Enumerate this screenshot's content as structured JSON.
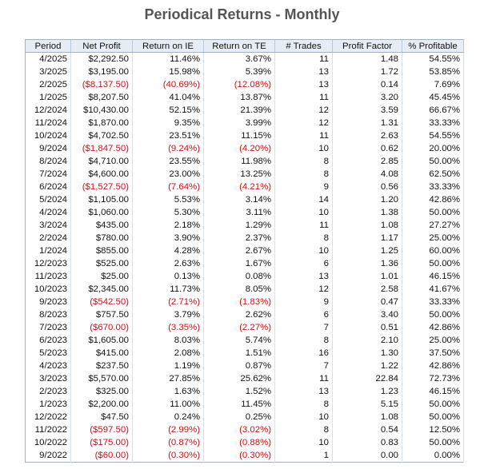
{
  "title": "Periodical Returns - Monthly",
  "colors": {
    "negative": "#cc1111",
    "header_bg": "#e7edf6",
    "border": "#9fb3cf",
    "title": "#555555"
  },
  "columns": [
    "Period",
    "Net Profit",
    "Return on IE",
    "Return on TE",
    "# Trades",
    "Profit Factor",
    "% Profitable"
  ],
  "rows": [
    [
      "4/2025",
      "$2,292.50",
      "11.46%",
      "3.67%",
      "11",
      "1.48",
      "54.55%"
    ],
    [
      "3/2025",
      "$3,195.00",
      "15.98%",
      "5.39%",
      "13",
      "1.72",
      "53.85%"
    ],
    [
      "2/2025",
      "($8,137.50)",
      "(40.69%)",
      "(12.08%)",
      "13",
      "0.14",
      "7.69%"
    ],
    [
      "1/2025",
      "$8,207.50",
      "41.04%",
      "13.87%",
      "11",
      "3.20",
      "45.45%"
    ],
    [
      "12/2024",
      "$10,430.00",
      "52.15%",
      "21.39%",
      "12",
      "3.59",
      "66.67%"
    ],
    [
      "11/2024",
      "$1,870.00",
      "9.35%",
      "3.99%",
      "12",
      "1.31",
      "33.33%"
    ],
    [
      "10/2024",
      "$4,702.50",
      "23.51%",
      "11.15%",
      "11",
      "2.63",
      "54.55%"
    ],
    [
      "9/2024",
      "($1,847.50)",
      "(9.24%)",
      "(4.20%)",
      "10",
      "0.62",
      "20.00%"
    ],
    [
      "8/2024",
      "$4,710.00",
      "23.55%",
      "11.98%",
      "8",
      "2.85",
      "50.00%"
    ],
    [
      "7/2024",
      "$4,600.00",
      "23.00%",
      "13.25%",
      "8",
      "4.08",
      "62.50%"
    ],
    [
      "6/2024",
      "($1,527.50)",
      "(7.64%)",
      "(4.21%)",
      "9",
      "0.56",
      "33.33%"
    ],
    [
      "5/2024",
      "$1,105.00",
      "5.53%",
      "3.14%",
      "14",
      "1.20",
      "42.86%"
    ],
    [
      "4/2024",
      "$1,060.00",
      "5.30%",
      "3.11%",
      "10",
      "1.38",
      "50.00%"
    ],
    [
      "3/2024",
      "$435.00",
      "2.18%",
      "1.29%",
      "11",
      "1.08",
      "27.27%"
    ],
    [
      "2/2024",
      "$780.00",
      "3.90%",
      "2.37%",
      "8",
      "1.17",
      "25.00%"
    ],
    [
      "1/2024",
      "$855.00",
      "4.28%",
      "2.67%",
      "10",
      "1.25",
      "60.00%"
    ],
    [
      "12/2023",
      "$525.00",
      "2.63%",
      "1.67%",
      "6",
      "1.36",
      "50.00%"
    ],
    [
      "11/2023",
      "$25.00",
      "0.13%",
      "0.08%",
      "13",
      "1.01",
      "46.15%"
    ],
    [
      "10/2023",
      "$2,345.00",
      "11.73%",
      "8.05%",
      "12",
      "2.58",
      "41.67%"
    ],
    [
      "9/2023",
      "($542.50)",
      "(2.71%)",
      "(1.83%)",
      "9",
      "0.47",
      "33.33%"
    ],
    [
      "8/2023",
      "$757.50",
      "3.79%",
      "2.62%",
      "6",
      "3.40",
      "50.00%"
    ],
    [
      "7/2023",
      "($670.00)",
      "(3.35%)",
      "(2.27%)",
      "7",
      "0.51",
      "42.86%"
    ],
    [
      "6/2023",
      "$1,605.00",
      "8.03%",
      "5.74%",
      "8",
      "2.10",
      "25.00%"
    ],
    [
      "5/2023",
      "$415.00",
      "2.08%",
      "1.51%",
      "16",
      "1.30",
      "37.50%"
    ],
    [
      "4/2023",
      "$237.50",
      "1.19%",
      "0.87%",
      "7",
      "1.22",
      "42.86%"
    ],
    [
      "3/2023",
      "$5,570.00",
      "27.85%",
      "25.62%",
      "11",
      "22.84",
      "72.73%"
    ],
    [
      "2/2023",
      "$325.00",
      "1.63%",
      "1.52%",
      "13",
      "1.23",
      "46.15%"
    ],
    [
      "1/2023",
      "$2,200.00",
      "11.00%",
      "11.45%",
      "8",
      "5.15",
      "50.00%"
    ],
    [
      "12/2022",
      "$47.50",
      "0.24%",
      "0.25%",
      "10",
      "1.08",
      "50.00%"
    ],
    [
      "11/2022",
      "($597.50)",
      "(2.99%)",
      "(3.02%)",
      "8",
      "0.54",
      "12.50%"
    ],
    [
      "10/2022",
      "($175.00)",
      "(0.87%)",
      "(0.88%)",
      "10",
      "0.83",
      "50.00%"
    ],
    [
      "9/2022",
      "($60.00)",
      "(0.30%)",
      "(0.30%)",
      "1",
      "0.00",
      "0.00%"
    ]
  ]
}
